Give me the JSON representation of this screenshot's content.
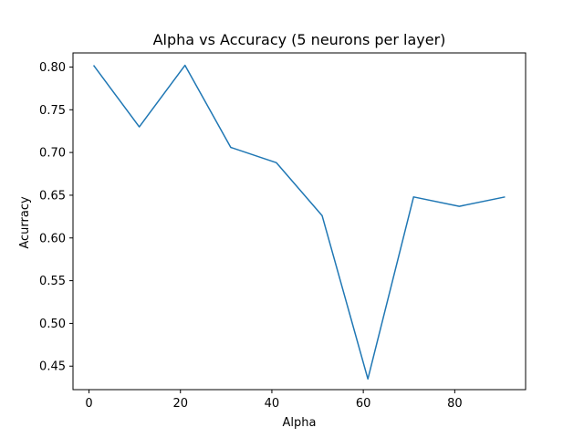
{
  "chart_data": {
    "type": "line",
    "title": "Alpha vs Accuracy (5 neurons per layer)",
    "xlabel": "Alpha",
    "ylabel": "Acurracy",
    "xlim": [
      -3.5,
      95.5
    ],
    "ylim": [
      0.4225,
      0.8165
    ],
    "xticks": [
      0,
      20,
      40,
      60,
      80
    ],
    "xtick_labels": [
      "0",
      "20",
      "40",
      "60",
      "80"
    ],
    "yticks": [
      0.45,
      0.5,
      0.55,
      0.6,
      0.65,
      0.7,
      0.75,
      0.8
    ],
    "ytick_labels": [
      "0.45",
      "0.50",
      "0.55",
      "0.60",
      "0.65",
      "0.70",
      "0.75",
      "0.80"
    ],
    "grid": false,
    "legend": "none",
    "series": [
      {
        "color": "#1f77b4",
        "x": [
          1,
          11,
          21,
          31,
          41,
          51,
          61,
          71,
          81,
          91
        ],
        "y": [
          0.802,
          0.73,
          0.802,
          0.706,
          0.688,
          0.626,
          0.435,
          0.648,
          0.637,
          0.648
        ]
      }
    ]
  }
}
